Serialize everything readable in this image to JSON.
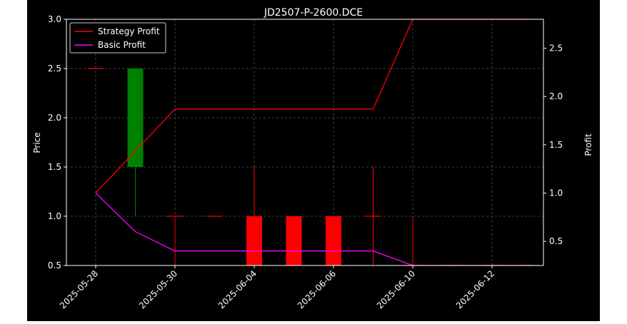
{
  "chart_data": {
    "type": "candlestick-with-profit-lines",
    "title": "JD2507-P-2600.DCE",
    "ylabel": "Price",
    "y2label": "Profit",
    "ylim": [
      0.5,
      3.0
    ],
    "y2lim": [
      0.25,
      2.8
    ],
    "y_ticks": [
      "0.5",
      "1.0",
      "1.5",
      "2.0",
      "2.5",
      "3.0"
    ],
    "y2_ticks": [
      "0.5",
      "1.0",
      "1.5",
      "2.0",
      "2.5"
    ],
    "x_ticks": [
      "2025-05-28",
      "2025-05-30",
      "2025-06-04",
      "2025-06-06",
      "2025-06-10",
      "2025-06-12"
    ],
    "grid": true,
    "legend_position": "top-left",
    "colors": {
      "background": "#000000",
      "up": "#008000",
      "down": "#ff0000",
      "strategy": "#ff0000",
      "basic": "#ff00ff"
    },
    "candles": [
      {
        "i": 0,
        "open": 2.5,
        "close": 2.5,
        "high": 2.5,
        "low": 2.5
      },
      {
        "i": 1,
        "open": 1.5,
        "close": 2.5,
        "high": 2.5,
        "low": 1.0
      },
      {
        "i": 2,
        "open": 1.0,
        "close": 1.0,
        "high": 1.0,
        "low": 0.5
      },
      {
        "i": 3,
        "open": 1.0,
        "close": 1.0,
        "high": 1.0,
        "low": 1.0
      },
      {
        "i": 4,
        "open": 1.0,
        "close": 0.5,
        "high": 1.5,
        "low": 0.5
      },
      {
        "i": 5,
        "open": 1.0,
        "close": 0.5,
        "high": 1.0,
        "low": 0.5
      },
      {
        "i": 6,
        "open": 1.0,
        "close": 0.5,
        "high": 1.0,
        "low": 0.5
      },
      {
        "i": 7,
        "open": 1.0,
        "close": 1.0,
        "high": 1.5,
        "low": 0.5
      },
      {
        "i": 8,
        "open": 0.5,
        "close": 0.5,
        "high": 1.0,
        "low": 0.5
      },
      {
        "i": 9,
        "open": 0.5,
        "close": 0.5,
        "high": 0.5,
        "low": 0.5
      },
      {
        "i": 10,
        "open": 0.5,
        "close": 0.5,
        "high": 0.5,
        "low": 0.5
      },
      {
        "i": 11,
        "open": 0.5,
        "close": 0.5,
        "high": 0.5,
        "low": 0.5
      }
    ],
    "series": [
      {
        "name": "Strategy Profit",
        "x": [
          0,
          2,
          7,
          8,
          11
        ],
        "values": [
          1.0,
          1.87,
          1.87,
          2.8,
          2.8
        ]
      },
      {
        "name": "Basic Profit",
        "x": [
          0,
          1,
          2,
          7,
          8,
          11
        ],
        "values": [
          1.0,
          0.6,
          0.4,
          0.4,
          0.25,
          0.25
        ]
      }
    ]
  }
}
